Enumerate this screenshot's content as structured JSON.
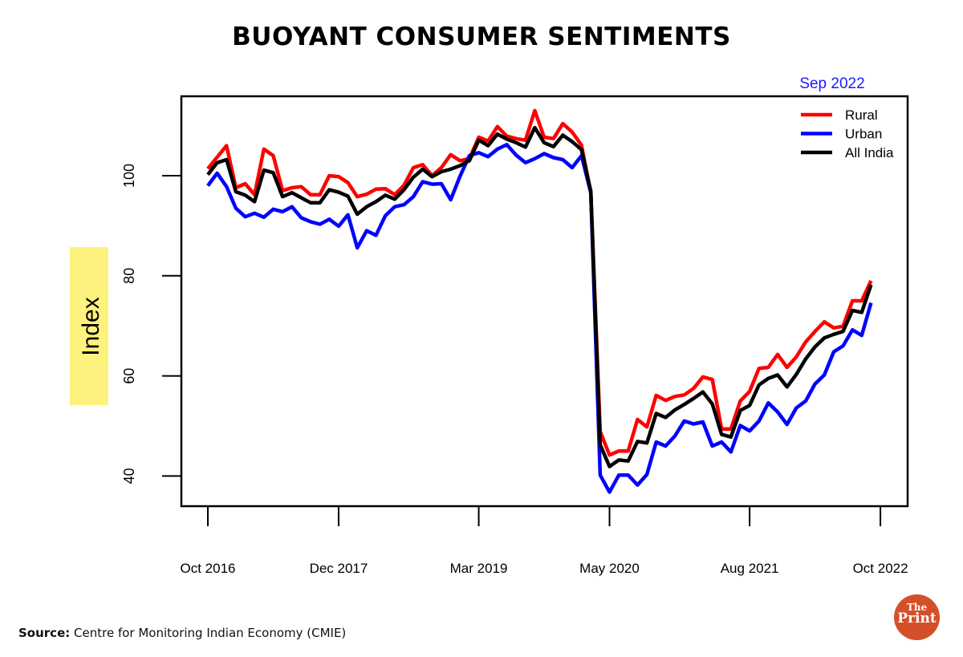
{
  "title": "BUOYANT CONSUMER SENTIMENTS",
  "source": {
    "label": "Source:",
    "text": "Centre for Monitoring Indian Economy (CMIE)"
  },
  "logo": {
    "line1": "The",
    "line2": "Print"
  },
  "chart_data": {
    "type": "line",
    "title": "BUOYANT CONSUMER SENTIMENTS",
    "xlabel": "",
    "ylabel": "Index",
    "annotation": {
      "text": "Sep 2022",
      "color": "#1a1aff"
    },
    "ylim": [
      35,
      117
    ],
    "yticks": [
      40,
      60,
      80,
      100
    ],
    "x_start": "Oct 2016",
    "x_end": "Sep 2022",
    "x_frequency": "monthly",
    "xticks": [
      {
        "label": "Oct 2016",
        "index": 0
      },
      {
        "label": "Dec 2017",
        "index": 14
      },
      {
        "label": "Mar 2019",
        "index": 29
      },
      {
        "label": "May 2020",
        "index": 43
      },
      {
        "label": "Aug 2021",
        "index": 58
      },
      {
        "label": "Oct 2022",
        "index": 72
      }
    ],
    "grid": false,
    "legend_position": "top-right",
    "series": [
      {
        "name": "Rural",
        "color": "#ff0000",
        "values": [
          101.4,
          103.7,
          106.0,
          97.6,
          98.4,
          96.2,
          105.3,
          104.0,
          97.0,
          97.6,
          97.8,
          96.2,
          96.2,
          100.0,
          99.8,
          98.6,
          95.8,
          96.3,
          97.3,
          97.4,
          96.2,
          98.1,
          101.6,
          102.2,
          100.0,
          101.6,
          104.2,
          103.0,
          103.4,
          107.7,
          106.9,
          109.8,
          107.9,
          107.4,
          107.1,
          113.0,
          107.7,
          107.4,
          110.4,
          108.7,
          106.1,
          96.5,
          48.9,
          44.2,
          45.0,
          45.0,
          51.3,
          49.8,
          56.1,
          55.1,
          55.9,
          56.2,
          57.5,
          59.8,
          59.3,
          49.4,
          49.4,
          55.0,
          56.9,
          61.5,
          61.7,
          64.3,
          61.7,
          63.8,
          66.8,
          68.9,
          70.8,
          69.6,
          69.9,
          75.0,
          75.0,
          79.0
        ]
      },
      {
        "name": "Urban",
        "color": "#0000ff",
        "values": [
          98.0,
          100.5,
          97.8,
          93.5,
          91.8,
          92.5,
          91.7,
          93.3,
          92.8,
          93.8,
          91.6,
          90.8,
          90.3,
          91.3,
          89.9,
          92.2,
          85.6,
          89.0,
          88.1,
          92.0,
          93.8,
          94.2,
          95.8,
          98.8,
          98.3,
          98.4,
          95.2,
          99.9,
          104.0,
          104.6,
          103.8,
          105.3,
          106.2,
          104.1,
          102.6,
          103.4,
          104.4,
          103.6,
          103.2,
          101.6,
          104.0,
          96.6,
          40.2,
          36.8,
          40.2,
          40.2,
          38.2,
          40.3,
          46.8,
          46.0,
          48.0,
          51.0,
          50.4,
          50.8,
          46.0,
          46.8,
          44.8,
          50.1,
          49.0,
          51.0,
          54.6,
          52.8,
          50.3,
          53.6,
          55.0,
          58.4,
          60.2,
          64.8,
          66.0,
          69.2,
          68.1,
          74.6
        ]
      },
      {
        "name": "All India",
        "color": "#000000",
        "values": [
          100.2,
          102.6,
          103.2,
          96.8,
          96.1,
          94.8,
          101.1,
          100.6,
          95.8,
          96.6,
          95.6,
          94.6,
          94.6,
          97.2,
          96.7,
          95.9,
          92.3,
          93.8,
          94.8,
          96.1,
          95.3,
          97.2,
          99.7,
          101.3,
          99.8,
          100.8,
          101.3,
          102.0,
          103.0,
          107.1,
          106.0,
          108.3,
          107.3,
          106.6,
          105.7,
          109.6,
          106.6,
          105.8,
          108.1,
          106.8,
          105.2,
          96.9,
          46.2,
          41.9,
          43.2,
          43.0,
          46.9,
          46.6,
          52.5,
          51.7,
          53.2,
          54.3,
          55.5,
          56.8,
          54.4,
          48.3,
          47.8,
          53.1,
          54.1,
          58.2,
          59.5,
          60.2,
          57.8,
          60.3,
          63.4,
          65.8,
          67.6,
          68.3,
          68.9,
          73.1,
          72.7,
          78.2
        ]
      }
    ]
  }
}
